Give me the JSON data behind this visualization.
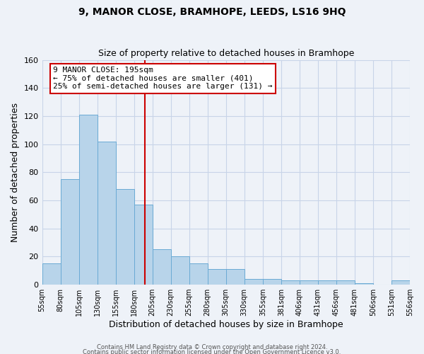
{
  "title": "9, MANOR CLOSE, BRAMHOPE, LEEDS, LS16 9HQ",
  "subtitle": "Size of property relative to detached houses in Bramhope",
  "xlabel": "Distribution of detached houses by size in Bramhope",
  "ylabel": "Number of detached properties",
  "bar_values": [
    15,
    75,
    121,
    102,
    68,
    57,
    25,
    20,
    15,
    11,
    11,
    4,
    4,
    3,
    3,
    3,
    3,
    1,
    0,
    3
  ],
  "x_labels": [
    "55sqm",
    "80sqm",
    "105sqm",
    "130sqm",
    "155sqm",
    "180sqm",
    "205sqm",
    "230sqm",
    "255sqm",
    "280sqm",
    "305sqm",
    "330sqm",
    "355sqm",
    "381sqm",
    "406sqm",
    "431sqm",
    "456sqm",
    "481sqm",
    "506sqm",
    "531sqm",
    "556sqm"
  ],
  "bar_color": "#b8d4ea",
  "bar_edge_color": "#6aaad4",
  "background_color": "#eef2f8",
  "grid_color": "#c8d4e8",
  "ylim": [
    0,
    160
  ],
  "yticks": [
    0,
    20,
    40,
    60,
    80,
    100,
    120,
    140,
    160
  ],
  "vline_color": "#cc0000",
  "annotation_title": "9 MANOR CLOSE: 195sqm",
  "annotation_line1": "← 75% of detached houses are smaller (401)",
  "annotation_line2": "25% of semi-detached houses are larger (131) →",
  "annotation_box_color": "#ffffff",
  "annotation_box_edgecolor": "#cc0000",
  "footer1": "Contains HM Land Registry data © Crown copyright and database right 2024.",
  "footer2": "Contains public sector information licensed under the Open Government Licence v3.0.",
  "figsize": [
    6.0,
    5.0
  ],
  "dpi": 100
}
